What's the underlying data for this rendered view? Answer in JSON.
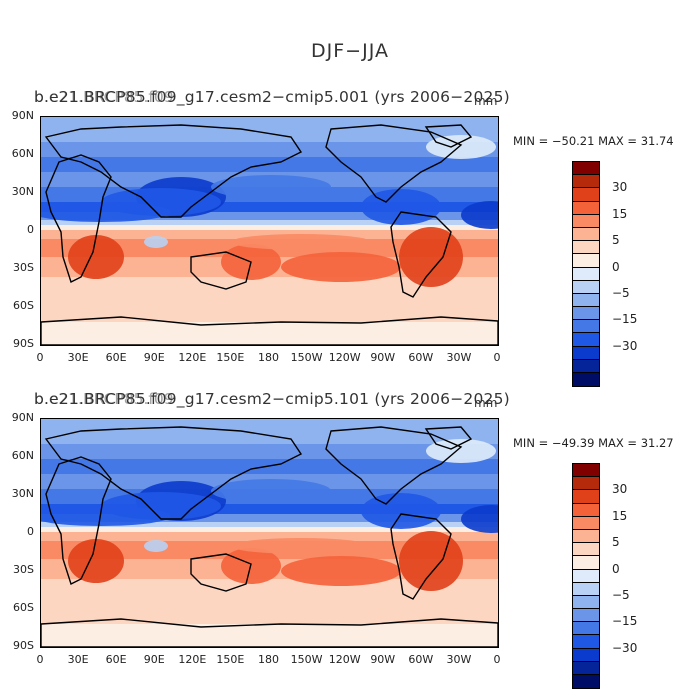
{
  "title": "DJF−JJA",
  "colors": {
    "scale": [
      "#800000",
      "#b52a0a",
      "#e0401a",
      "#f4623a",
      "#fa8a64",
      "#fcb393",
      "#fdd6c2",
      "#fdeee3",
      "#dfebfa",
      "#b8d1f4",
      "#8fb3ee",
      "#6b95e8",
      "#4478e6",
      "#2058e6",
      "#0b3bcc",
      "#06249a",
      "#000d66"
    ],
    "land": "#000000"
  },
  "colorbar_labels": [
    "30",
    "15",
    "5",
    "0",
    "−5",
    "−15",
    "−30"
  ],
  "lat_ticks": [
    "90N",
    "60N",
    "30N",
    "0",
    "30S",
    "60S",
    "90S"
  ],
  "lon_ticks": [
    "0",
    "30E",
    "60E",
    "90E",
    "120E",
    "150E",
    "180",
    "150W",
    "120W",
    "90W",
    "60W",
    "30W",
    "0"
  ],
  "panels": [
    {
      "title": "b.e21.BRCP85.f09_g17.cesm2−cmip5.001 (yrs 2006−2025)",
      "overlap_text": "b.e21.BRCP85.f09",
      "units": "mm",
      "stats": "MIN = −50.21  MAX =   31.74"
    },
    {
      "title": "b.e21.BRCP85.f09_g17.cesm2−cmip5.101 (yrs 2006−2025)",
      "overlap_text": "b.e21.BRCP85.f09",
      "units": "mm",
      "stats": "MIN = −49.39  MAX =   31.27"
    }
  ]
}
